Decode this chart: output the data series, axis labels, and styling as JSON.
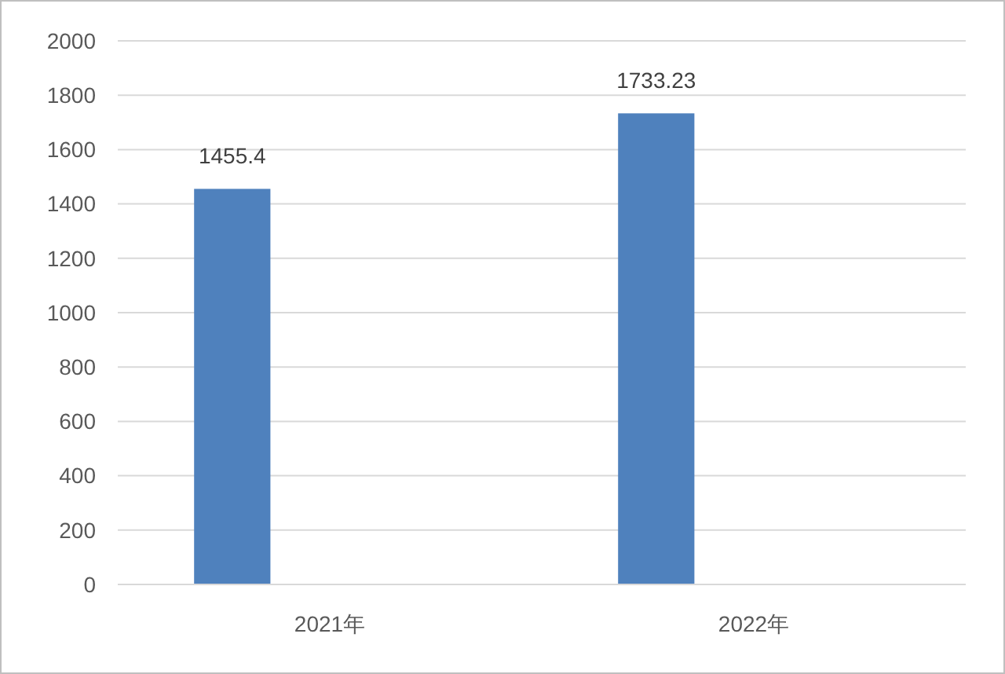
{
  "chart_data": {
    "type": "bar",
    "categories": [
      "2021年",
      "2022年"
    ],
    "values": [
      1455.4,
      1733.23
    ],
    "color": "#4f81bd",
    "ylim": [
      0,
      2000
    ],
    "yticks": [
      0,
      200,
      400,
      600,
      800,
      1000,
      1200,
      1400,
      1600,
      1800,
      2000
    ],
    "grid": "y",
    "data_labels": true
  }
}
